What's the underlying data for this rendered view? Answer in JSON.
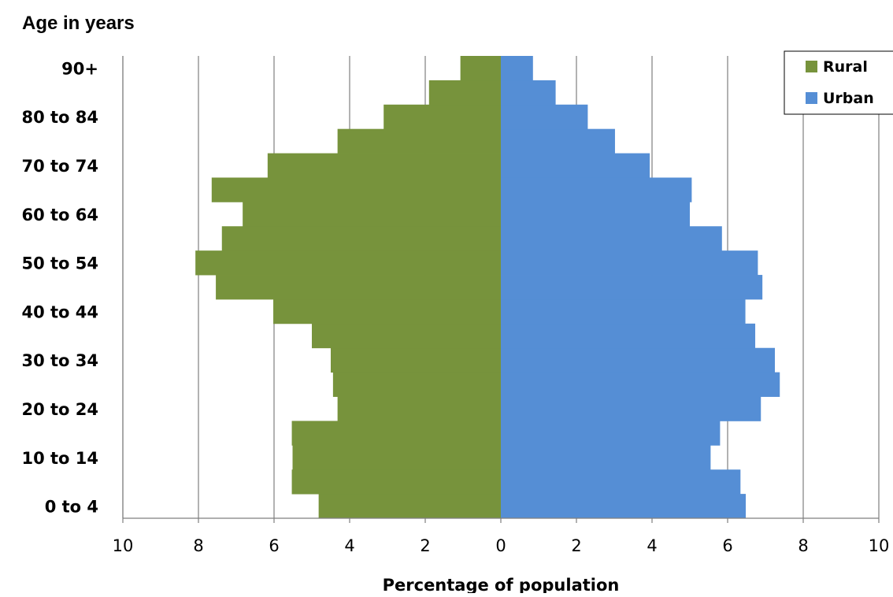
{
  "chart_data": {
    "type": "bar",
    "orientation": "horizontal",
    "layout": "population-pyramid",
    "ylabel": "Age in years",
    "xlabel": "Percentage of population",
    "xlim": [
      -10,
      10
    ],
    "x_ticks": [
      -10,
      -8,
      -6,
      -4,
      -2,
      0,
      2,
      4,
      6,
      8,
      10
    ],
    "x_tick_labels": [
      "10",
      "8",
      "6",
      "4",
      "2",
      "0",
      "2",
      "4",
      "6",
      "8",
      "10"
    ],
    "grid": "vertical",
    "legend_position": "top-right",
    "categories": [
      "0 to 4",
      "5 to 9",
      "10 to 14",
      "15 to 19",
      "20 to 24",
      "25 to 29",
      "30 to 34",
      "35 to 39",
      "40 to 44",
      "45 to 49",
      "50 to 54",
      "55 to 59",
      "60 to 64",
      "65 to 69",
      "70 to 74",
      "75 to 79",
      "80 to 84",
      "85 to 89",
      "90+"
    ],
    "visible_category_labels": [
      "0 to 4",
      "10 to 14",
      "20 to 24",
      "30 to 34",
      "40 to 44",
      "50 to 54",
      "60 to 64",
      "70 to 74",
      "80 to 84",
      "90+"
    ],
    "series": [
      {
        "name": "Rural",
        "side": "left",
        "color": "#77933C",
        "values": [
          4.82,
          5.53,
          5.51,
          5.53,
          4.32,
          4.44,
          4.5,
          5.0,
          6.02,
          7.54,
          8.08,
          7.38,
          6.83,
          7.65,
          6.17,
          4.32,
          3.1,
          1.9,
          1.07
        ]
      },
      {
        "name": "Urban",
        "side": "right",
        "color": "#558ED5",
        "values": [
          6.48,
          6.34,
          5.55,
          5.8,
          6.88,
          7.38,
          7.25,
          6.73,
          6.47,
          6.92,
          6.8,
          5.85,
          5.0,
          5.05,
          3.94,
          3.02,
          2.3,
          1.45,
          0.85
        ]
      }
    ]
  }
}
